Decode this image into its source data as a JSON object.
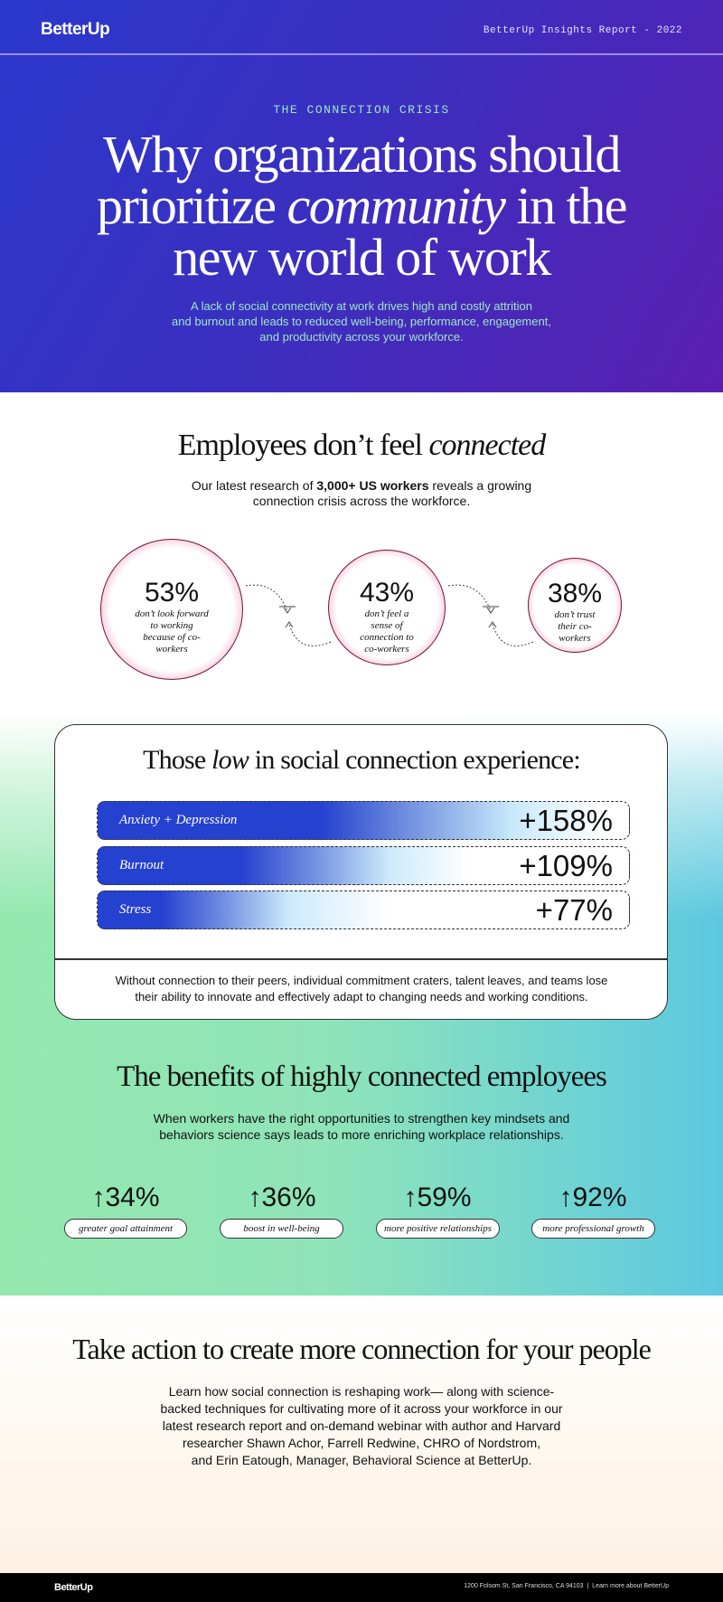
{
  "header": {
    "logo": "BetterUp",
    "report_label": "BetterUp Insights Report - 2022"
  },
  "hero": {
    "eyebrow": "THE CONNECTION CRISIS",
    "title_l1": "Why organizations should",
    "title_l2a": "prioritize ",
    "title_l2b": "community",
    "title_l2c": " in the",
    "title_l3": "new world of work",
    "subtitle": [
      "A lack of social connectivity at work drives high and costly attrition",
      "and burnout and leads to reduced well-being, performance, engagement,",
      "and productivity across your workforce."
    ]
  },
  "connected": {
    "title_a": "Employees don’t feel ",
    "title_b": "connected",
    "intro_a": "Our latest research of ",
    "intro_bold": "3,000+ US workers",
    "intro_c": " reveals a growing",
    "intro_l2": "connection crisis across the workforce.",
    "stats": [
      {
        "value": "53%",
        "label": "don’t look forward to working because of co-workers"
      },
      {
        "value": "43%",
        "label": "don’t feel a sense of connection to co-workers"
      },
      {
        "value": "38%",
        "label": "don’t trust their co-workers"
      }
    ]
  },
  "low": {
    "title_a": "Those ",
    "title_b": "low",
    "title_c": " in social connection experience:",
    "bars": [
      {
        "label": "Anxiety + Depression",
        "value": "+158%",
        "pct": 158
      },
      {
        "label": "Burnout",
        "value": "+109%",
        "pct": 109
      },
      {
        "label": "Stress",
        "value": "+77%",
        "pct": 77
      }
    ],
    "note": [
      "Without connection to their peers, individual commitment craters, talent leaves, and teams lose",
      "their ability to innovate and effectively adapt to changing needs and working conditions."
    ]
  },
  "benefits": {
    "title": "The benefits of highly connected employees",
    "text": [
      "When workers have the right opportunities to strengthen key mindsets and",
      "behaviors science says leads to more enriching workplace relationships."
    ],
    "stats": [
      {
        "value": "↑34%",
        "label": "greater goal attainment"
      },
      {
        "value": "↑36%",
        "label": "boost in well-being"
      },
      {
        "value": "↑59%",
        "label": "more positive relationships"
      },
      {
        "value": "↑92%",
        "label": "more professional growth"
      }
    ]
  },
  "action": {
    "title": "Take action to create more connection for your people",
    "text": [
      "Learn how social connection is reshaping work— along with science-",
      "backed techniques for cultivating more of it across your workforce in our",
      "latest research report and on-demand webinar with author and Harvard",
      "researcher Shawn Achor, Farrell Redwine, CHRO of Nordstrom,",
      "and Erin Eatough, Manager, Behavioral Science at BetterUp."
    ]
  },
  "footer": {
    "logo": "BetterUp",
    "address": "1200 Folsom St, San Francisco, CA 94103",
    "separator": "|",
    "link": "Learn more about BetterUp"
  },
  "colors": {
    "brand_blue": "#2a38cc",
    "brand_purple": "#5a1fb0",
    "pink": "#c4165a",
    "mint": "#94e8ae",
    "cyan": "#5cc8e0"
  }
}
